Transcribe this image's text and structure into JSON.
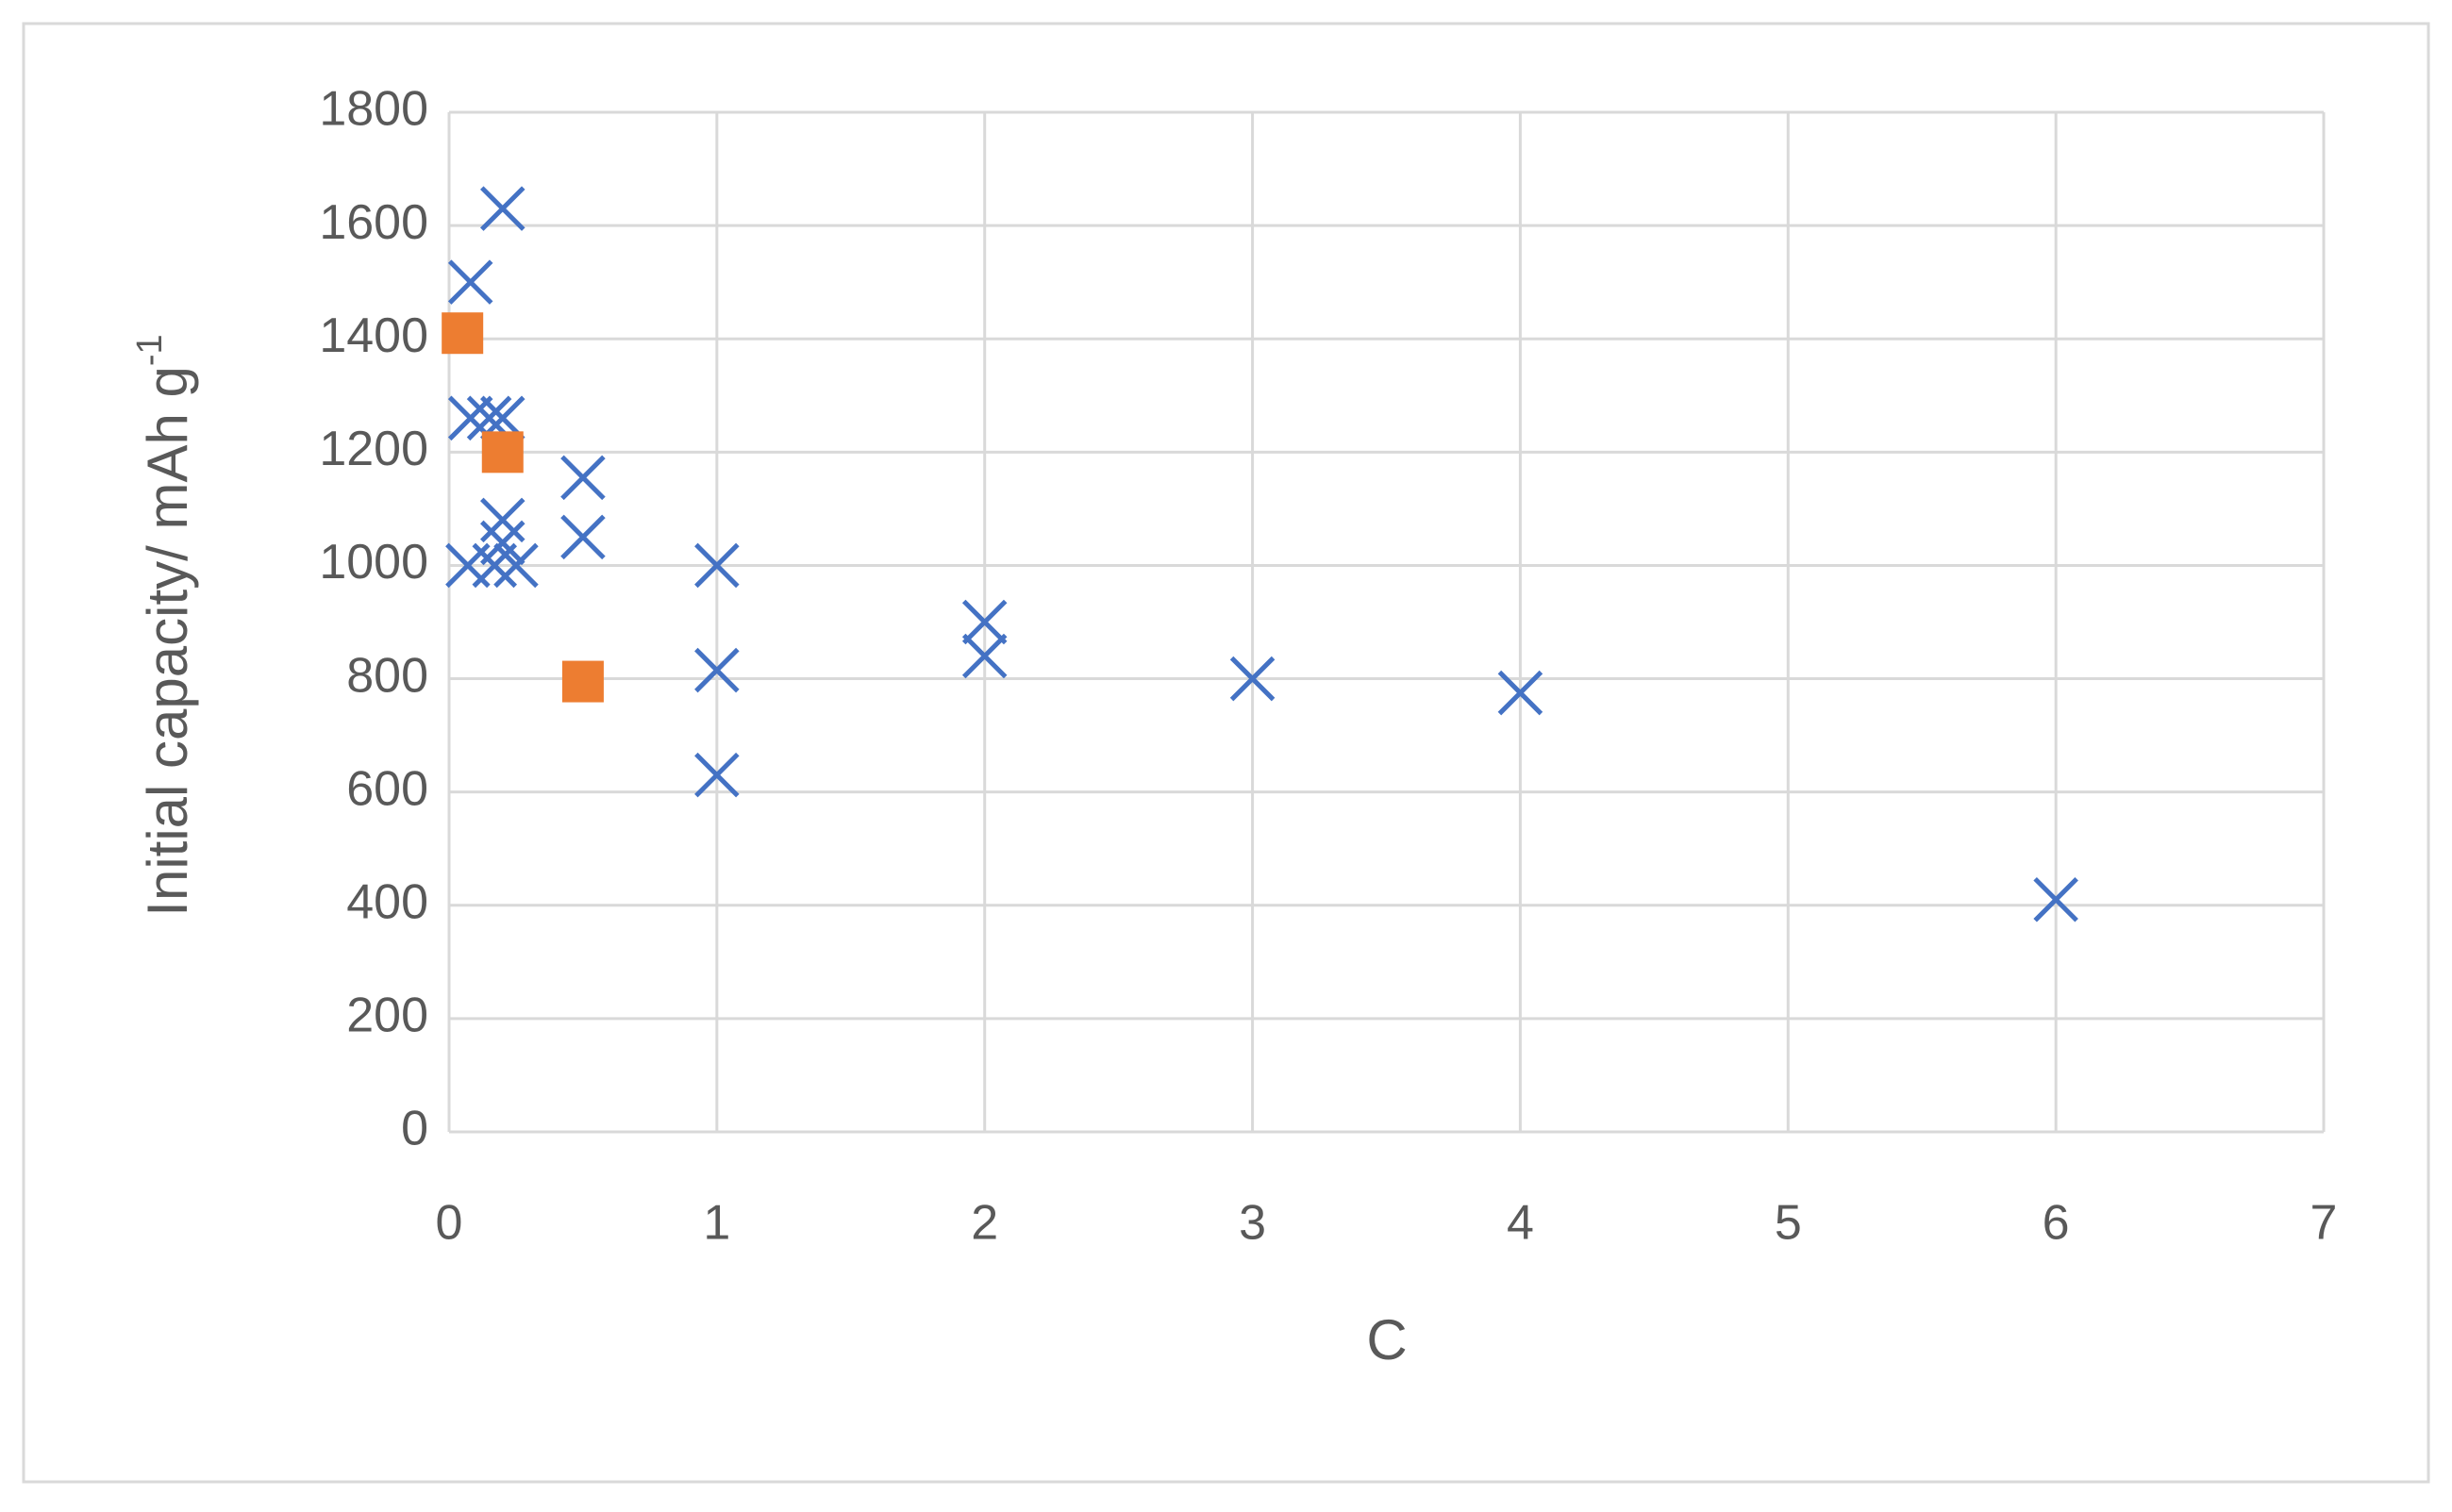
{
  "chart_data": {
    "type": "scatter",
    "xlabel": "C",
    "ylabel": "Initial  capacity/ mAh g",
    "ylabel_sup": "-1",
    "xlim": [
      0,
      7
    ],
    "xticks": [
      0,
      1,
      2,
      3,
      4,
      5,
      6,
      7
    ],
    "ylim": [
      0,
      1800
    ],
    "yticks": [
      0,
      200,
      400,
      600,
      800,
      1000,
      1200,
      1400,
      1600,
      1800
    ],
    "grid": true,
    "series": [
      {
        "color": "#4472c4",
        "marker": "x",
        "x": [
          0.08,
          0.2,
          0.08,
          0.15,
          0.2,
          0.07,
          0.2,
          0.2,
          0.17,
          0.25,
          0.5,
          0.5,
          1,
          1,
          1,
          2,
          2,
          3,
          4,
          6
        ],
        "values": [
          1500,
          1630,
          1260,
          1260,
          1260,
          1000,
          1080,
          1040,
          1000,
          1000,
          1155,
          1050,
          1000,
          815,
          630,
          900,
          840,
          800,
          775,
          410
        ]
      },
      {
        "color": "#ed7d31",
        "marker": "square",
        "x": [
          0.05,
          0.2,
          0.5
        ],
        "values": [
          1410,
          1200,
          795
        ]
      }
    ]
  }
}
